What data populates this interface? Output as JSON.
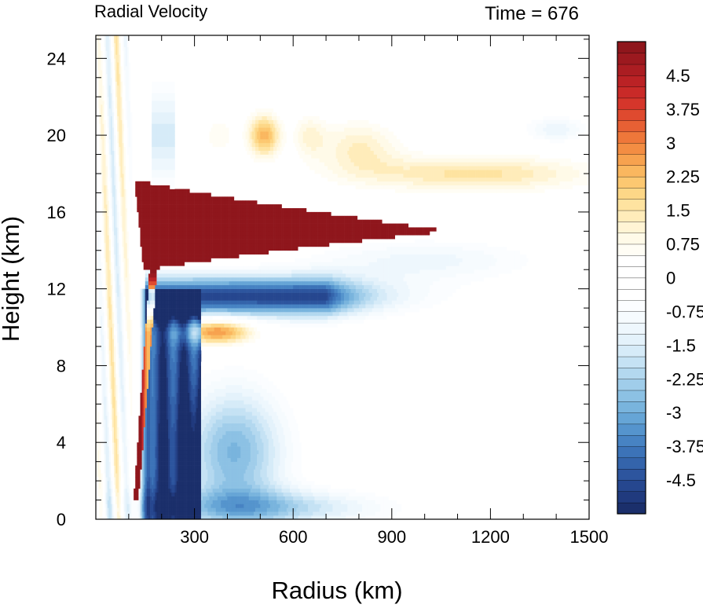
{
  "chart_data": {
    "type": "heatmap",
    "title": "Radial Velocity",
    "annotation": "Time = 676",
    "xlabel": "Radius (km)",
    "ylabel": "Height (km)",
    "xlim": [
      0,
      1500
    ],
    "ylim": [
      0,
      25.2
    ],
    "xticks": [
      300,
      600,
      900,
      1200,
      1500
    ],
    "yticks": [
      0,
      4,
      8,
      12,
      16,
      20,
      24
    ],
    "colorbar": {
      "levels": [
        -5.25,
        -5,
        -4.75,
        -4.5,
        -4.25,
        -4,
        -3.75,
        -3.5,
        -3.25,
        -3,
        -2.75,
        -2.5,
        -2.25,
        -2,
        -1.75,
        -1.5,
        -1.25,
        -1,
        -0.75,
        -0.5,
        -0.25,
        0,
        0.25,
        0.5,
        0.75,
        1,
        1.25,
        1.5,
        1.75,
        2,
        2.25,
        2.5,
        2.75,
        3,
        3.25,
        3.5,
        3.75,
        4,
        4.25,
        4.5,
        4.75,
        5,
        5.25
      ],
      "tick_labels": [
        "4.5",
        "3.75",
        "3",
        "2.25",
        "1.5",
        "0.75",
        "0",
        "-0.75",
        "-1.5",
        "-2.25",
        "-3",
        "-3.75",
        "-4.5"
      ],
      "colors": [
        "#1b2f6b",
        "#203a7e",
        "#26478f",
        "#2d559e",
        "#3464ab",
        "#3c73b8",
        "#4783c3",
        "#5594cd",
        "#66a5d6",
        "#79b4dd",
        "#8cc1e4",
        "#a0cdea",
        "#b3d8ef",
        "#c5e2f4",
        "#d6ebf8",
        "#e4f2fb",
        "#eef7fd",
        "#f6fbfe",
        "#fbfdff",
        "#ffffff",
        "#ffffff",
        "#ffffff",
        "#ffffff",
        "#fffdf5",
        "#fffae8",
        "#fff4d4",
        "#ffecba",
        "#fee3a0",
        "#fdd787",
        "#fcc871",
        "#fab75f",
        "#f7a24f",
        "#f38d43",
        "#ee773a",
        "#e76034",
        "#df4a2f",
        "#d5362b",
        "#c92a28",
        "#bb2225",
        "#ab1d22",
        "#9c191f",
        "#8f161c"
      ]
    }
  }
}
